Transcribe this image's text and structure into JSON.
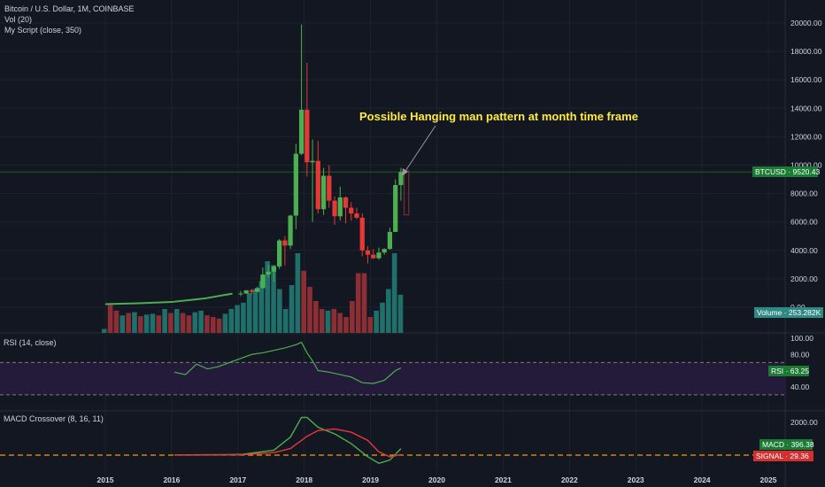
{
  "header": {
    "title_line": "Bitcoin / U.S. Dollar, 1M, COINBASE",
    "volume_label": "Vol (20)",
    "script_label": "My Script (close, 350)"
  },
  "annotation": {
    "text": "Possible Hanging man pattern at month time frame"
  },
  "rsi": {
    "label": "RSI (14, close)",
    "value_tag": "RSI · 63.25",
    "ticks": [
      "100.00",
      "80.00",
      "40.00"
    ]
  },
  "macd": {
    "label": "MACD Crossover (8, 16, 11)",
    "macd_tag": "MACD · 396.38",
    "signal_tag": "SIGNAL · 29.36",
    "ticks": [
      "2000.00"
    ]
  },
  "price_tag": "BTCUSD · 9520.43",
  "volume_tag": "Volume · 253.282K",
  "colors": {
    "background": "#131722",
    "up": "#26a69a",
    "candle_up": "#4caf50",
    "candle_down": "#e53935",
    "rsi_line": "#4caf50",
    "macd_line": "#4caf50",
    "signal_line": "#e53935",
    "annotation": "#ffeb3b"
  },
  "chart_data": [
    {
      "type": "candlestick",
      "title": "Bitcoin / U.S. Dollar, 1M, COINBASE",
      "ylim": [
        0,
        20000
      ],
      "y_ticks": [
        "0.00",
        "2000.00",
        "4000.00",
        "6000.00",
        "8000.00",
        "10000.00",
        "12000.00",
        "14000.00",
        "16000.00",
        "18000.00",
        "20000.00"
      ],
      "x_ticks": [
        "2015",
        "2016",
        "2017",
        "2018",
        "2019",
        "2020",
        "2021",
        "2022",
        "2023",
        "2024",
        "2025"
      ],
      "candles": [
        {
          "t": "2017-01",
          "o": 960,
          "h": 1150,
          "l": 780,
          "c": 970
        },
        {
          "t": "2017-02",
          "o": 970,
          "h": 1200,
          "l": 930,
          "c": 1190
        },
        {
          "t": "2017-03",
          "o": 1190,
          "h": 1300,
          "l": 890,
          "c": 1080
        },
        {
          "t": "2017-04",
          "o": 1080,
          "h": 1450,
          "l": 1070,
          "c": 1350
        },
        {
          "t": "2017-05",
          "o": 1350,
          "h": 2800,
          "l": 1300,
          "c": 2300
        },
        {
          "t": "2017-06",
          "o": 2300,
          "h": 3000,
          "l": 2100,
          "c": 2500
        },
        {
          "t": "2017-07",
          "o": 2500,
          "h": 2950,
          "l": 1800,
          "c": 2870
        },
        {
          "t": "2017-08",
          "o": 2870,
          "h": 4800,
          "l": 2700,
          "c": 4700
        },
        {
          "t": "2017-09",
          "o": 4700,
          "h": 5000,
          "l": 2950,
          "c": 4340
        },
        {
          "t": "2017-10",
          "o": 4340,
          "h": 6500,
          "l": 4100,
          "c": 6450
        },
        {
          "t": "2017-11",
          "o": 6450,
          "h": 11500,
          "l": 5500,
          "c": 10800
        },
        {
          "t": "2017-12",
          "o": 10800,
          "h": 19900,
          "l": 10700,
          "c": 13900
        },
        {
          "t": "2018-01",
          "o": 13900,
          "h": 17200,
          "l": 9200,
          "c": 10200
        },
        {
          "t": "2018-02",
          "o": 10200,
          "h": 11800,
          "l": 6000,
          "c": 10300
        },
        {
          "t": "2018-03",
          "o": 10300,
          "h": 11700,
          "l": 6600,
          "c": 6900
        },
        {
          "t": "2018-04",
          "o": 6900,
          "h": 9800,
          "l": 6500,
          "c": 9250
        },
        {
          "t": "2018-05",
          "o": 9250,
          "h": 10000,
          "l": 7000,
          "c": 7500
        },
        {
          "t": "2018-06",
          "o": 7500,
          "h": 7800,
          "l": 5800,
          "c": 6400
        },
        {
          "t": "2018-07",
          "o": 6400,
          "h": 8500,
          "l": 6100,
          "c": 7730
        },
        {
          "t": "2018-08",
          "o": 7730,
          "h": 7800,
          "l": 5900,
          "c": 7000
        },
        {
          "t": "2018-09",
          "o": 7000,
          "h": 7400,
          "l": 6100,
          "c": 6600
        },
        {
          "t": "2018-10",
          "o": 6600,
          "h": 7000,
          "l": 6200,
          "c": 6300
        },
        {
          "t": "2018-11",
          "o": 6300,
          "h": 6600,
          "l": 3600,
          "c": 4000
        },
        {
          "t": "2018-12",
          "o": 4000,
          "h": 4300,
          "l": 3100,
          "c": 3700
        },
        {
          "t": "2019-01",
          "o": 3700,
          "h": 4100,
          "l": 3400,
          "c": 3450
        },
        {
          "t": "2019-02",
          "o": 3450,
          "h": 4200,
          "l": 3350,
          "c": 3850
        },
        {
          "t": "2019-03",
          "o": 3850,
          "h": 4150,
          "l": 3700,
          "c": 4100
        },
        {
          "t": "2019-04",
          "o": 4100,
          "h": 5600,
          "l": 4050,
          "c": 5300
        },
        {
          "t": "2019-05",
          "o": 5300,
          "h": 9000,
          "l": 5300,
          "c": 8600
        },
        {
          "t": "2019-06",
          "o": 8600,
          "h": 9800,
          "l": 7500,
          "c": 9520
        }
      ],
      "early_closes": [
        {
          "t": "2015-01",
          "c": 220
        },
        {
          "t": "2015-07",
          "c": 280
        },
        {
          "t": "2016-01",
          "c": 370
        },
        {
          "t": "2016-07",
          "c": 620
        },
        {
          "t": "2016-12",
          "c": 960
        }
      ],
      "ghost_candle": {
        "t": "2019-07",
        "o": 9600,
        "h": 9700,
        "l": 6300,
        "c": 6500
      },
      "horizontal_line": 9520.43
    },
    {
      "type": "bar",
      "title": "Vol (20)",
      "volume_relative": [
        0.05,
        0.35,
        0.28,
        0.22,
        0.25,
        0.26,
        0.21,
        0.23,
        0.24,
        0.22,
        0.3,
        0.25,
        0.3,
        0.25,
        0.22,
        0.26,
        0.28,
        0.22,
        0.2,
        0.18,
        0.24,
        0.3,
        0.35,
        0.38,
        0.5,
        0.55,
        0.65,
        0.9,
        0.85,
        0.55,
        0.3,
        0.6,
        1.0,
        0.78,
        0.58,
        0.4,
        0.3,
        0.28,
        0.3,
        0.25,
        0.2,
        0.4,
        0.75,
        0.75,
        0.2,
        0.28,
        0.38,
        0.55,
        1.0,
        0.48
      ],
      "last_value": "253.282K"
    },
    {
      "type": "line",
      "title": "RSI (14, close)",
      "ylim": [
        20,
        100
      ],
      "x": [
        "2016-01",
        "2016-03",
        "2016-05",
        "2016-07",
        "2016-09",
        "2016-11",
        "2017-01",
        "2017-03",
        "2017-05",
        "2017-07",
        "2017-09",
        "2017-11",
        "2017-12",
        "2018-01",
        "2018-02",
        "2018-03",
        "2018-05",
        "2018-07",
        "2018-09",
        "2018-11",
        "2019-01",
        "2019-03",
        "2019-05",
        "2019-06"
      ],
      "values": [
        58,
        55,
        68,
        62,
        65,
        70,
        75,
        80,
        82,
        85,
        88,
        92,
        95,
        82,
        72,
        60,
        58,
        55,
        52,
        45,
        44,
        48,
        60,
        63.25
      ],
      "overbought": 70,
      "oversold": 30
    },
    {
      "type": "line",
      "title": "MACD Crossover (8, 16, 11)",
      "x": [
        "2016-01",
        "2016-07",
        "2017-01",
        "2017-07",
        "2017-10",
        "2017-12",
        "2018-01",
        "2018-03",
        "2018-06",
        "2018-09",
        "2018-12",
        "2019-02",
        "2019-04",
        "2019-06"
      ],
      "series": [
        {
          "name": "MACD",
          "values": [
            10,
            20,
            40,
            300,
            1100,
            2300,
            2300,
            1700,
            1300,
            700,
            -100,
            -500,
            -300,
            396.38
          ]
        },
        {
          "name": "SIGNAL",
          "values": [
            5,
            10,
            20,
            150,
            400,
            900,
            1150,
            1500,
            1600,
            1400,
            900,
            200,
            -100,
            29.36
          ]
        }
      ],
      "y_ticks": [
        "2000.00"
      ]
    }
  ]
}
